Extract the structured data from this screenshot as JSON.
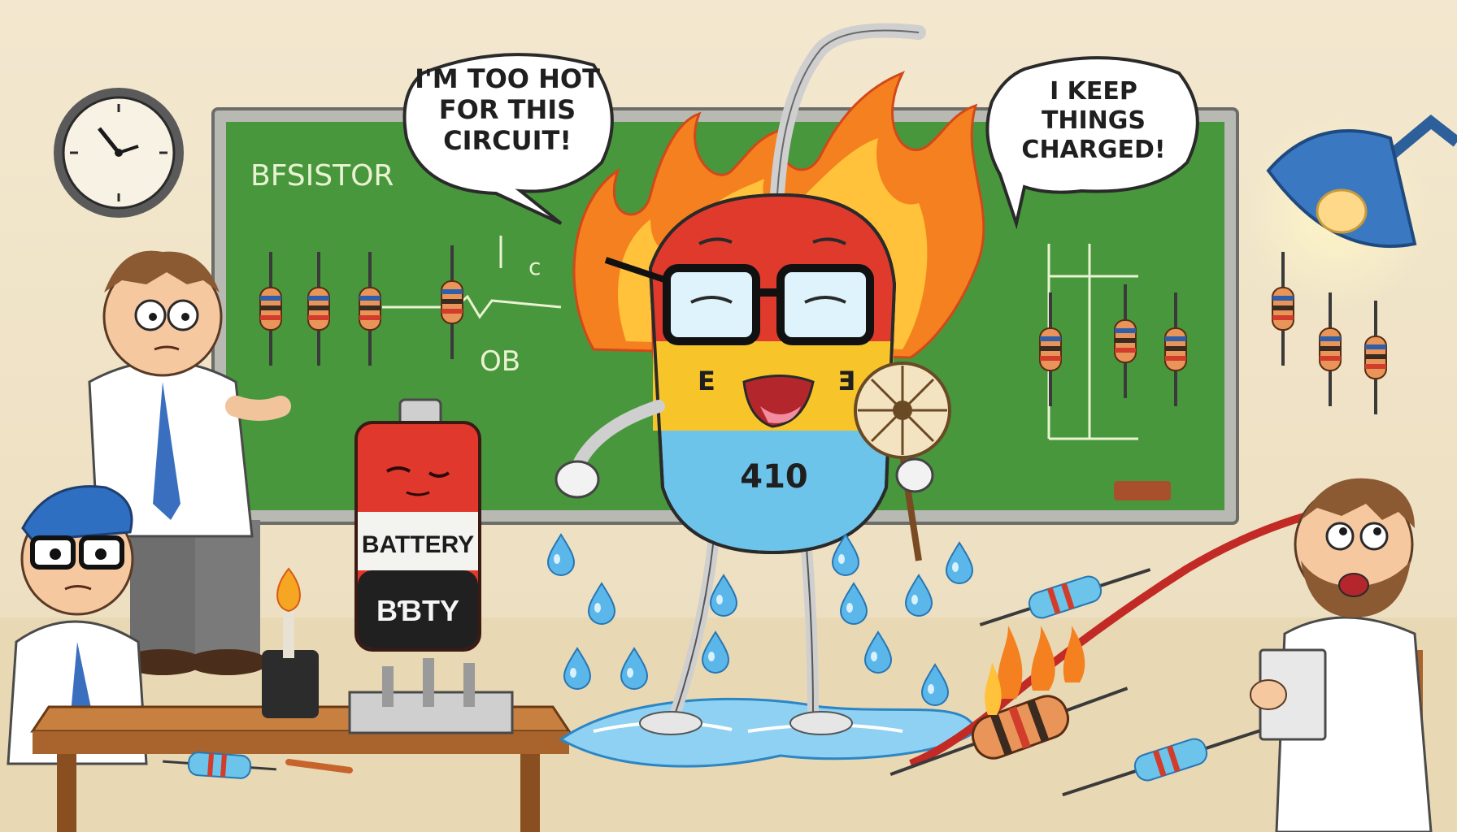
{
  "bubbles": {
    "left": [
      "I'M TOO HOT",
      "FOR THIS",
      "CIRCUIT!"
    ],
    "right": [
      "I KEEP",
      "THINGS",
      "CHARGED!"
    ]
  },
  "chalkboard": {
    "title": "BFSISTOR",
    "note_c": "c",
    "note_ob": "OB"
  },
  "battery": {
    "label_top": "BATTERY",
    "label_bottom": "BƁTY"
  },
  "character": {
    "belly_text": "410"
  },
  "colors": {
    "wall": "#f4ead2",
    "board_green": "#3f8f3a",
    "flame_orange": "#f5801f",
    "capacitor_red": "#e03a2d",
    "capacitor_yellow": "#f7c52a",
    "capacitor_blue": "#6cc4ea",
    "water_blue": "#5bb7ea"
  }
}
